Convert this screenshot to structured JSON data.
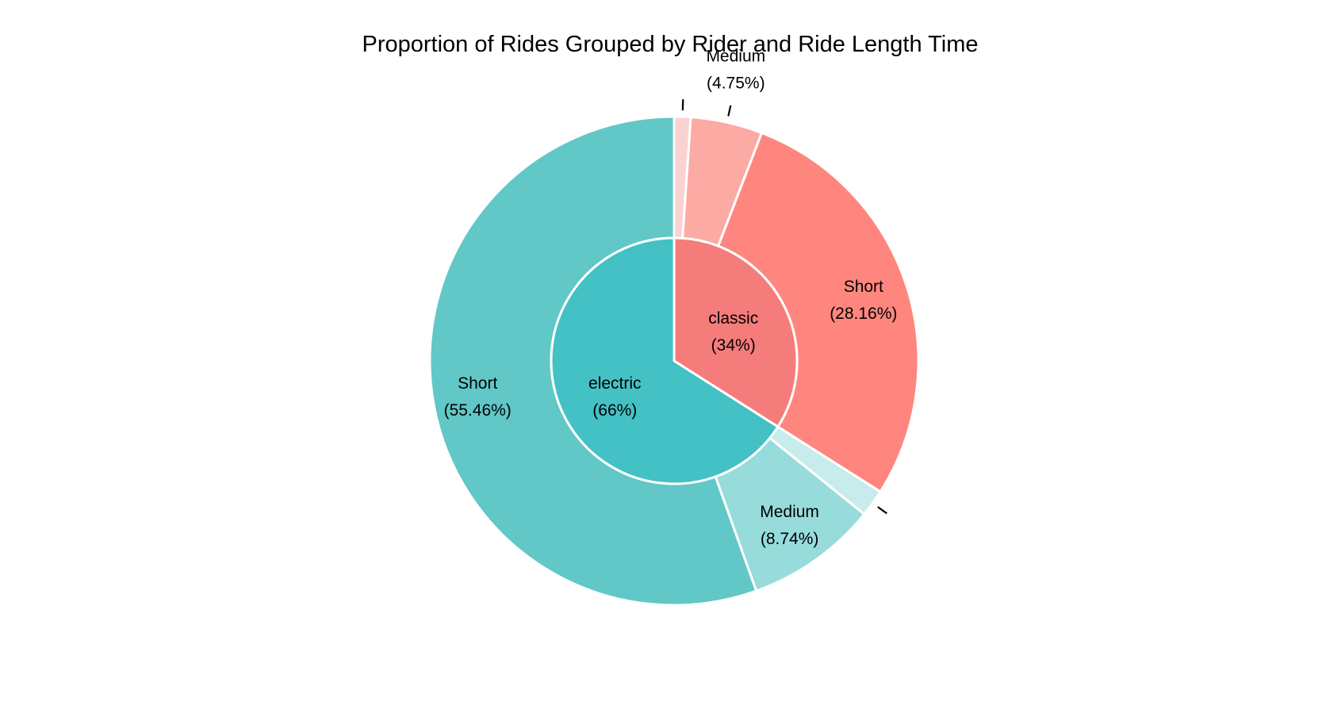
{
  "chart_data": {
    "type": "pie",
    "subtype": "nested-donut",
    "title": "Proportion of Rides Grouped by Rider and Ride Length Time",
    "start": "12 o'clock, clockwise",
    "inner": [
      {
        "name": "classic",
        "label": "classic",
        "pct_label": "(34%)",
        "value": 34,
        "color": "#f47c7a"
      },
      {
        "name": "electric",
        "label": "electric",
        "pct_label": "(66%)",
        "value": 66,
        "color": "#44c1c4"
      }
    ],
    "outer": [
      {
        "group": "classic",
        "label": "",
        "pct_label": "",
        "value": 1.09,
        "color": "#f9d2d1"
      },
      {
        "group": "classic",
        "label": "Medium",
        "pct_label": "(4.75%)",
        "value": 4.75,
        "color": "#fcaaa4"
      },
      {
        "group": "classic",
        "label": "Short",
        "pct_label": "(28.16%)",
        "value": 28.16,
        "color": "#ff867e"
      },
      {
        "group": "electric",
        "label": "",
        "pct_label": "",
        "value": 1.8,
        "color": "#c8ecec"
      },
      {
        "group": "electric",
        "label": "Medium",
        "pct_label": "(8.74%)",
        "value": 8.74,
        "color": "#97dbdb"
      },
      {
        "group": "electric",
        "label": "Short",
        "pct_label": "(55.46%)",
        "value": 55.46,
        "color": "#61c7c7"
      }
    ]
  }
}
